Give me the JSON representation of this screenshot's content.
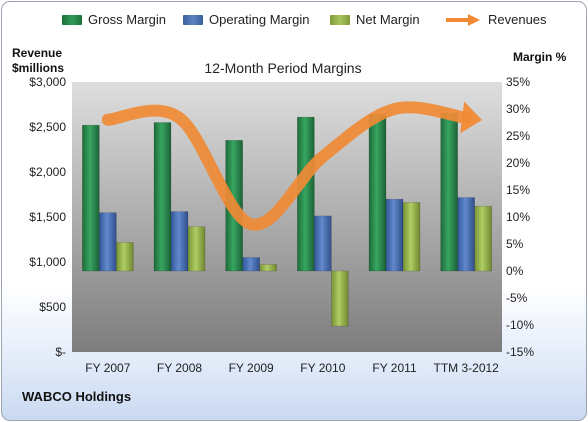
{
  "legend": {
    "gross": "Gross Margin",
    "operating": "Operating Margin",
    "net": "Net Margin",
    "revenues": "Revenues"
  },
  "left_axis_title": [
    "Revenue",
    "$millions"
  ],
  "right_axis_title": "Margin %",
  "company": "WABCO Holdings",
  "colors": {
    "gross": "#2e8b4e",
    "operating": "#4f73b5",
    "net": "#9bbb59",
    "revenues": "#f08a35",
    "plot_top": "#d9d9d9",
    "plot_bottom": "#7f7f7f"
  },
  "chart_data": {
    "type": "bar",
    "title": "12-Month Period Margins",
    "categories": [
      "FY 2007",
      "FY 2008",
      "FY 2009",
      "FY 2010",
      "FY 2011",
      "TTM 3-2012"
    ],
    "series": [
      {
        "name": "Gross Margin",
        "axis": "right",
        "values": [
          27.0,
          27.5,
          24.2,
          28.5,
          29.0,
          29.2
        ]
      },
      {
        "name": "Operating Margin",
        "axis": "right",
        "values": [
          10.8,
          11.0,
          2.5,
          10.2,
          13.3,
          13.6
        ]
      },
      {
        "name": "Net Margin",
        "axis": "right",
        "values": [
          5.3,
          8.2,
          1.2,
          -10.2,
          12.7,
          12.0
        ]
      },
      {
        "name": "Revenues",
        "type": "line",
        "axis": "left",
        "values": [
          2580,
          2600,
          1420,
          2170,
          2700,
          2600
        ]
      }
    ],
    "left_axis": {
      "label": "Revenue $millions",
      "ylim": [
        0,
        3000
      ],
      "ticks": [
        "$-",
        "$500",
        "$1,000",
        "$1,500",
        "$2,000",
        "$2,500",
        "$3,000"
      ],
      "tick_values": [
        0,
        500,
        1000,
        1500,
        2000,
        2500,
        3000
      ]
    },
    "right_axis": {
      "label": "Margin %",
      "ylim": [
        -15,
        35
      ],
      "ticks": [
        "-15%",
        "-10%",
        "-5%",
        "0%",
        "5%",
        "10%",
        "15%",
        "20%",
        "25%",
        "30%",
        "35%"
      ],
      "tick_values": [
        -15,
        -10,
        -5,
        0,
        5,
        10,
        15,
        20,
        25,
        30,
        35
      ]
    },
    "grid": false,
    "legend_position": "top"
  }
}
